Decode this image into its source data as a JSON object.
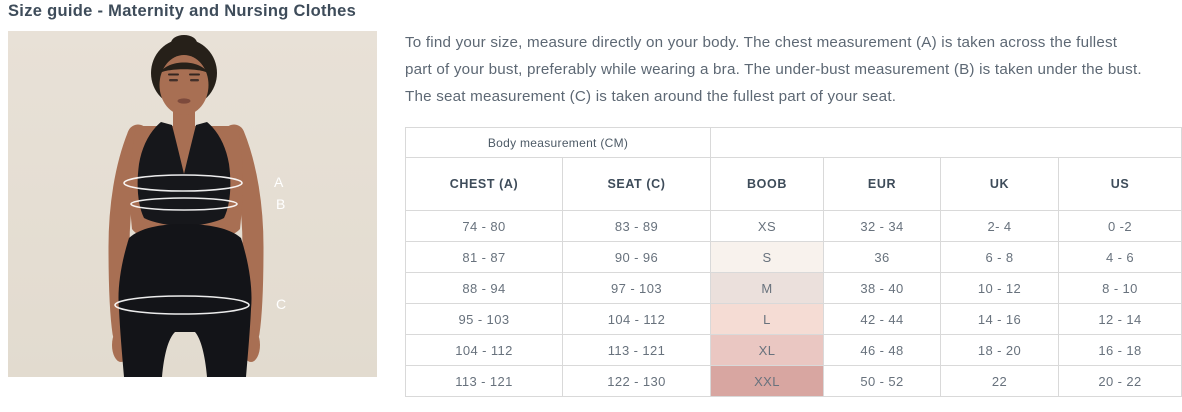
{
  "page": {
    "title": "Size guide - Maternity and Nursing Clothes",
    "description": "To find your size, measure directly on your body. The chest measurement (A) is taken across the fullest part of your bust, preferably while wearing a bra. The under-bust measurement (B) is taken under the bust. The seat measurement (C) is taken around the fullest part of your seat."
  },
  "figure": {
    "labels": {
      "chest": "A",
      "underbust": "B",
      "seat": "C"
    }
  },
  "table": {
    "group_header": "Body measurement (CM)",
    "columns": [
      "CHEST (A)",
      "SEAT (C)",
      "BOOB",
      "EUR",
      "UK",
      "US"
    ],
    "rows": [
      {
        "chest": "74 - 80",
        "seat": "83 - 89",
        "boob": "XS",
        "eur": "32 - 34",
        "uk": "2- 4",
        "us": "0 -2",
        "boob_bg": "#ffffff"
      },
      {
        "chest": "81 - 87",
        "seat": "90 - 96",
        "boob": "S",
        "eur": "36",
        "uk": "6 - 8",
        "us": "4 - 6",
        "boob_bg": "#f8f2ed"
      },
      {
        "chest": "88 - 94",
        "seat": "97 - 103",
        "boob": "M",
        "eur": "38 - 40",
        "uk": "10 - 12",
        "us": "8 - 10",
        "boob_bg": "#ebe0dc"
      },
      {
        "chest": "95 - 103",
        "seat": "104 - 112",
        "boob": "L",
        "eur": "42 - 44",
        "uk": "14 - 16",
        "us": "12 - 14",
        "boob_bg": "#f5dcd4"
      },
      {
        "chest": "104 - 112",
        "seat": "113 - 121",
        "boob": "XL",
        "eur": "46 - 48",
        "uk": "18 - 20",
        "us": "16 - 18",
        "boob_bg": "#eac7c2"
      },
      {
        "chest": "113 - 121",
        "seat": "122 - 130",
        "boob": "XXL",
        "eur": "50 - 52",
        "uk": "22",
        "us": "20 - 22",
        "boob_bg": "#d8a6a1"
      }
    ]
  },
  "colors": {
    "heading_text": "#3e4c5a",
    "body_text": "#5d6874",
    "table_border": "#d9d9d9",
    "photo_background": "#e6dfd4"
  }
}
